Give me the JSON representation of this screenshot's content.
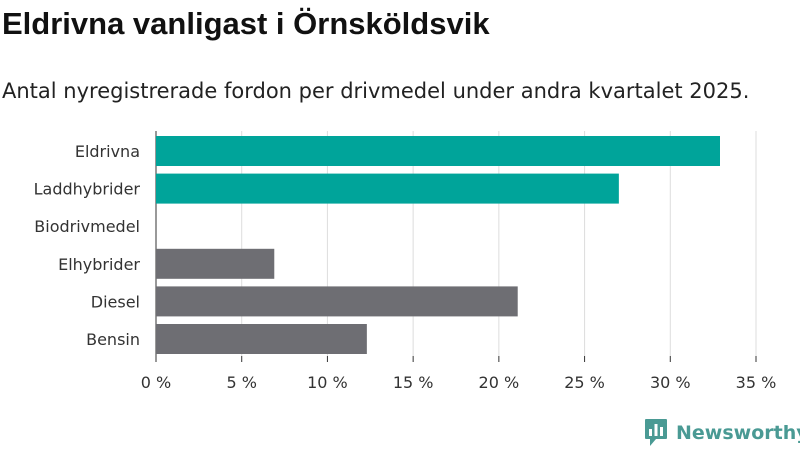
{
  "chart_data": {
    "type": "bar",
    "orientation": "horizontal",
    "title": "Eldrivna vanligast i Örnsköldsvik",
    "subtitle": "Antal nyregistrerade fordon per drivmedel under andra kvartalet 2025.",
    "categories": [
      "Eldrivna",
      "Laddhybrider",
      "Biodrivmedel",
      "Elhybrider",
      "Diesel",
      "Bensin"
    ],
    "values": [
      32.9,
      27.0,
      0,
      6.9,
      21.1,
      12.3
    ],
    "bar_colors": [
      "#00a49a",
      "#00a49a",
      "#6e6e73",
      "#6e6e73",
      "#6e6e73",
      "#6e6e73"
    ],
    "xlim": [
      0,
      35
    ],
    "xticks": [
      0,
      5,
      10,
      15,
      20,
      25,
      30,
      35
    ],
    "xtick_labels": [
      "0 %",
      "5 %",
      "10 %",
      "15 %",
      "20 %",
      "25 %",
      "30 %",
      "35 %"
    ],
    "xlabel": "",
    "ylabel": "",
    "grid": "vertical",
    "legend": "none"
  },
  "source_logo": {
    "text": "Newsworthy",
    "color": "#4a9a94"
  }
}
